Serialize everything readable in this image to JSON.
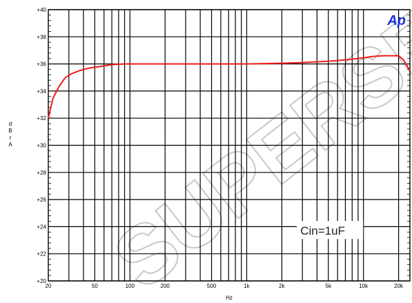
{
  "chart_data": {
    "type": "line",
    "title": "",
    "xlabel": "Hz",
    "ylabel": "d B r  A",
    "x_scale": "log",
    "xlim": [
      20,
      25000
    ],
    "ylim": [
      20,
      40
    ],
    "grid": true,
    "x_ticks": [
      {
        "value": 20,
        "label": "20"
      },
      {
        "value": 50,
        "label": "50"
      },
      {
        "value": 100,
        "label": "100"
      },
      {
        "value": 200,
        "label": "200"
      },
      {
        "value": 500,
        "label": "500"
      },
      {
        "value": 1000,
        "label": "1k"
      },
      {
        "value": 2000,
        "label": "2k"
      },
      {
        "value": 5000,
        "label": "5k"
      },
      {
        "value": 10000,
        "label": "10k"
      },
      {
        "value": 20000,
        "label": "20k"
      }
    ],
    "y_ticks": [
      {
        "value": 20,
        "label": "+20"
      },
      {
        "value": 22,
        "label": "+22"
      },
      {
        "value": 24,
        "label": "+24"
      },
      {
        "value": 26,
        "label": "+26"
      },
      {
        "value": 28,
        "label": "+28"
      },
      {
        "value": 30,
        "label": "+30"
      },
      {
        "value": 32,
        "label": "+32"
      },
      {
        "value": 34,
        "label": "+34"
      },
      {
        "value": 36,
        "label": "+36"
      },
      {
        "value": 38,
        "label": "+38"
      },
      {
        "value": 40,
        "label": "+40"
      }
    ],
    "series": [
      {
        "color": "#ee1c1c",
        "x": [
          20,
          22,
          25,
          28,
          32,
          37,
          45,
          55,
          70,
          90,
          120,
          200,
          500,
          1000,
          2000,
          3000,
          5000,
          6000,
          8000,
          10000,
          12000,
          15000,
          18000,
          20000,
          22000,
          25000
        ],
        "y": [
          32.0,
          33.5,
          34.4,
          35.0,
          35.3,
          35.5,
          35.7,
          35.8,
          35.95,
          36.0,
          36.0,
          36.0,
          36.0,
          36.0,
          36.05,
          36.1,
          36.2,
          36.25,
          36.35,
          36.45,
          36.55,
          36.6,
          36.6,
          36.6,
          36.3,
          35.5
        ]
      }
    ],
    "annotations": [
      {
        "text": "Cin=1uF",
        "x": 3000,
        "y": 23.5
      }
    ]
  },
  "logo_text": "Ap",
  "watermark_text": "SUPERSEDED",
  "colors": {
    "line": "#ee1c1c",
    "grid": "#000000",
    "logo": "#1a2fd6",
    "watermark": "#c8c8c8"
  }
}
